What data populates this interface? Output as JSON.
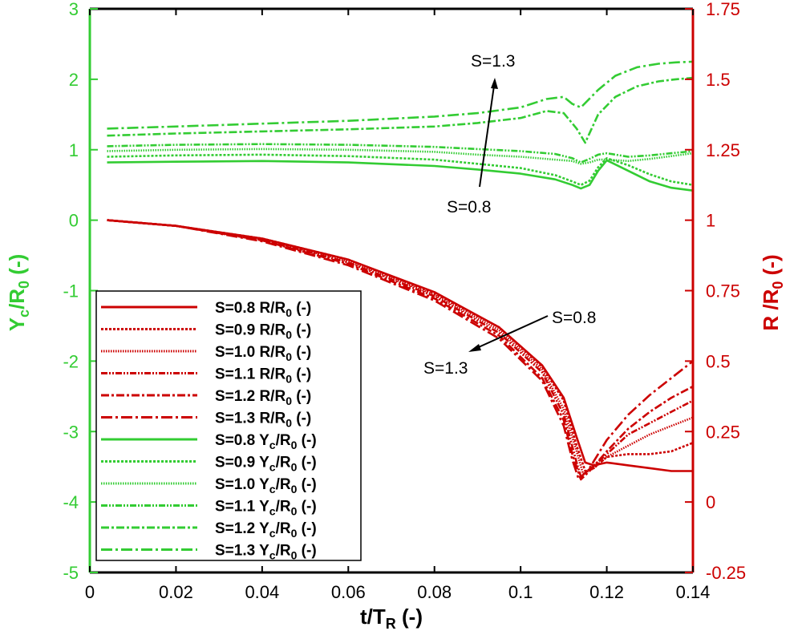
{
  "chart_data": {
    "type": "line",
    "title": "",
    "xlabel": {
      "main": "t/T",
      "sub": "R",
      "tail": " (-)"
    },
    "ylabel_left": {
      "main": "Y",
      "sub1": "c",
      "mid": "/R",
      "sub2": "0",
      "tail": " (-)"
    },
    "ylabel_right": {
      "main": "R /R",
      "sub": "0",
      "tail": " (-)"
    },
    "xlim": [
      0,
      0.14
    ],
    "ylim_left": [
      -5,
      3
    ],
    "ylim_right": [
      -0.25,
      1.75
    ],
    "xticks": [
      "0",
      "0.02",
      "0.04",
      "0.06",
      "0.08",
      "0.1",
      "0.12",
      "0.14"
    ],
    "yticks_left": [
      "-5",
      "-4",
      "-3",
      "-2",
      "-1",
      "0",
      "1",
      "2",
      "3"
    ],
    "yticks_right": [
      "-0.25",
      "0",
      "0.25",
      "0.5",
      "0.75",
      "1",
      "1.25",
      "1.5",
      "1.75"
    ],
    "colors": {
      "green": "#33cc33",
      "red": "#cc0000",
      "axis": "#000000"
    },
    "annotations": [
      {
        "text": "S=1.3"
      },
      {
        "text": "S=0.8"
      },
      {
        "text": "S=0.8"
      },
      {
        "text": "S=1.3"
      }
    ],
    "legend": {
      "placement": "lower-left",
      "entries": [
        {
          "label": "S=0.8 R/R",
          "sub": "0",
          "tail": " (-)",
          "style": "solid",
          "color": "red"
        },
        {
          "label": "S=0.9 R/R",
          "sub": "0",
          "tail": " (-)",
          "style": "dotted",
          "color": "red"
        },
        {
          "label": "S=1.0 R/R",
          "sub": "0",
          "tail": " (-)",
          "style": "fine-dotted",
          "color": "red"
        },
        {
          "label": "S=1.1 R/R",
          "sub": "0",
          "tail": " (-)",
          "style": "dash-dot-dot",
          "color": "red"
        },
        {
          "label": "S=1.2 R/R",
          "sub": "0",
          "tail": " (-)",
          "style": "dash-dot",
          "color": "red"
        },
        {
          "label": "S=1.3 R/R",
          "sub": "0",
          "tail": " (-)",
          "style": "long-dash-dot",
          "color": "red"
        },
        {
          "label": "S=0.8 Y",
          "sub": "c",
          "mid": "/R",
          "sub2": "0",
          "tail": " (-)",
          "style": "solid",
          "color": "green"
        },
        {
          "label": "S=0.9 Y",
          "sub": "c",
          "mid": "/R",
          "sub2": "0",
          "tail": " (-)",
          "style": "dotted",
          "color": "green"
        },
        {
          "label": "S=1.0 Y",
          "sub": "c",
          "mid": "/R",
          "sub2": "0",
          "tail": " (-)",
          "style": "fine-dotted",
          "color": "green"
        },
        {
          "label": "S=1.1 Y",
          "sub": "c",
          "mid": "/R",
          "sub2": "0",
          "tail": " (-)",
          "style": "dash-dot-dot",
          "color": "green"
        },
        {
          "label": "S=1.2 Y",
          "sub": "c",
          "mid": "/R",
          "sub2": "0",
          "tail": " (-)",
          "style": "dash-dot",
          "color": "green"
        },
        {
          "label": "S=1.3 Y",
          "sub": "c",
          "mid": "/R",
          "sub2": "0",
          "tail": " (-)",
          "style": "long-dash-dot",
          "color": "green"
        }
      ]
    },
    "series": [
      {
        "name": "S=0.8 R/R0",
        "axis": "right",
        "x": [
          0.004,
          0.02,
          0.04,
          0.06,
          0.08,
          0.095,
          0.105,
          0.11,
          0.113,
          0.115,
          0.117,
          0.12,
          0.125,
          0.13,
          0.135,
          0.14
        ],
        "y": [
          1.0,
          0.98,
          0.935,
          0.86,
          0.745,
          0.62,
          0.485,
          0.37,
          0.23,
          0.14,
          0.13,
          0.14,
          0.13,
          0.12,
          0.11,
          0.11
        ]
      },
      {
        "name": "S=0.9 R/R0",
        "axis": "right",
        "x": [
          0.004,
          0.02,
          0.04,
          0.06,
          0.08,
          0.095,
          0.105,
          0.11,
          0.113,
          0.115,
          0.117,
          0.12,
          0.125,
          0.13,
          0.135,
          0.14
        ],
        "y": [
          1.0,
          0.98,
          0.935,
          0.86,
          0.74,
          0.62,
          0.48,
          0.36,
          0.2,
          0.11,
          0.12,
          0.16,
          0.17,
          0.17,
          0.18,
          0.21
        ]
      },
      {
        "name": "S=1.0 R/R0",
        "axis": "right",
        "x": [
          0.004,
          0.02,
          0.04,
          0.06,
          0.08,
          0.095,
          0.105,
          0.11,
          0.113,
          0.1145,
          0.117,
          0.12,
          0.125,
          0.13,
          0.135,
          0.14
        ],
        "y": [
          1.0,
          0.98,
          0.932,
          0.855,
          0.735,
          0.61,
          0.47,
          0.33,
          0.18,
          0.1,
          0.12,
          0.16,
          0.2,
          0.24,
          0.27,
          0.3
        ]
      },
      {
        "name": "S=1.1 R/R0",
        "axis": "right",
        "x": [
          0.004,
          0.02,
          0.04,
          0.06,
          0.08,
          0.095,
          0.105,
          0.11,
          0.113,
          0.114,
          0.117,
          0.12,
          0.125,
          0.13,
          0.135,
          0.14
        ],
        "y": [
          1.0,
          0.98,
          0.93,
          0.85,
          0.73,
          0.6,
          0.46,
          0.31,
          0.14,
          0.09,
          0.13,
          0.17,
          0.24,
          0.28,
          0.32,
          0.36
        ]
      },
      {
        "name": "S=1.2 R/R0",
        "axis": "right",
        "x": [
          0.004,
          0.02,
          0.04,
          0.06,
          0.08,
          0.095,
          0.105,
          0.11,
          0.112,
          0.114,
          0.116,
          0.12,
          0.125,
          0.13,
          0.135,
          0.14
        ],
        "y": [
          1.0,
          0.98,
          0.928,
          0.845,
          0.722,
          0.59,
          0.44,
          0.29,
          0.17,
          0.08,
          0.11,
          0.18,
          0.26,
          0.32,
          0.37,
          0.41
        ]
      },
      {
        "name": "S=1.3 R/R0",
        "axis": "right",
        "x": [
          0.004,
          0.02,
          0.04,
          0.06,
          0.08,
          0.095,
          0.105,
          0.11,
          0.112,
          0.1135,
          0.116,
          0.12,
          0.125,
          0.13,
          0.135,
          0.14
        ],
        "y": [
          1.0,
          0.98,
          0.925,
          0.84,
          0.715,
          0.58,
          0.43,
          0.27,
          0.15,
          0.08,
          0.12,
          0.22,
          0.31,
          0.38,
          0.44,
          0.5
        ]
      },
      {
        "name": "S=0.8 Yc/R0",
        "axis": "left",
        "x": [
          0.004,
          0.02,
          0.04,
          0.06,
          0.08,
          0.09,
          0.1,
          0.108,
          0.112,
          0.114,
          0.116,
          0.118,
          0.12,
          0.125,
          0.13,
          0.135,
          0.14
        ],
        "y": [
          0.82,
          0.83,
          0.84,
          0.82,
          0.77,
          0.72,
          0.66,
          0.58,
          0.5,
          0.45,
          0.5,
          0.7,
          0.85,
          0.7,
          0.55,
          0.46,
          0.42
        ]
      },
      {
        "name": "S=0.9 Yc/R0",
        "axis": "left",
        "x": [
          0.004,
          0.02,
          0.04,
          0.06,
          0.08,
          0.09,
          0.1,
          0.108,
          0.112,
          0.114,
          0.116,
          0.118,
          0.12,
          0.125,
          0.13,
          0.135,
          0.14
        ],
        "y": [
          0.9,
          0.92,
          0.93,
          0.91,
          0.86,
          0.8,
          0.74,
          0.64,
          0.55,
          0.5,
          0.56,
          0.75,
          0.88,
          0.78,
          0.65,
          0.55,
          0.5
        ]
      },
      {
        "name": "S=1.0 Yc/R0",
        "axis": "left",
        "x": [
          0.004,
          0.02,
          0.04,
          0.06,
          0.08,
          0.09,
          0.1,
          0.108,
          0.112,
          0.114,
          0.116,
          0.118,
          0.12,
          0.125,
          0.13,
          0.135,
          0.14
        ],
        "y": [
          0.98,
          1.0,
          1.01,
          1.0,
          0.97,
          0.93,
          0.9,
          0.86,
          0.84,
          0.8,
          0.82,
          0.86,
          0.86,
          0.84,
          0.87,
          0.91,
          0.95
        ]
      },
      {
        "name": "S=1.1 Yc/R0",
        "axis": "left",
        "x": [
          0.004,
          0.02,
          0.04,
          0.06,
          0.08,
          0.09,
          0.1,
          0.108,
          0.112,
          0.114,
          0.116,
          0.118,
          0.12,
          0.125,
          0.13,
          0.135,
          0.14
        ],
        "y": [
          1.05,
          1.07,
          1.08,
          1.07,
          1.04,
          1.01,
          0.98,
          0.94,
          0.88,
          0.82,
          0.87,
          0.93,
          0.95,
          0.9,
          0.92,
          0.95,
          0.98
        ]
      },
      {
        "name": "S=1.2 Yc/R0",
        "axis": "left",
        "x": [
          0.004,
          0.02,
          0.04,
          0.06,
          0.08,
          0.09,
          0.1,
          0.106,
          0.11,
          0.113,
          0.115,
          0.118,
          0.122,
          0.127,
          0.132,
          0.136,
          0.14
        ],
        "y": [
          1.2,
          1.23,
          1.26,
          1.29,
          1.33,
          1.38,
          1.45,
          1.55,
          1.52,
          1.3,
          1.1,
          1.5,
          1.75,
          1.9,
          1.97,
          2.0,
          2.02
        ]
      },
      {
        "name": "S=1.3 Yc/R0",
        "axis": "left",
        "x": [
          0.004,
          0.02,
          0.04,
          0.06,
          0.08,
          0.09,
          0.1,
          0.106,
          0.11,
          0.112,
          0.114,
          0.118,
          0.122,
          0.127,
          0.132,
          0.136,
          0.14
        ],
        "y": [
          1.3,
          1.33,
          1.37,
          1.41,
          1.47,
          1.52,
          1.6,
          1.72,
          1.75,
          1.65,
          1.6,
          1.85,
          2.05,
          2.17,
          2.22,
          2.24,
          2.25
        ]
      }
    ]
  }
}
